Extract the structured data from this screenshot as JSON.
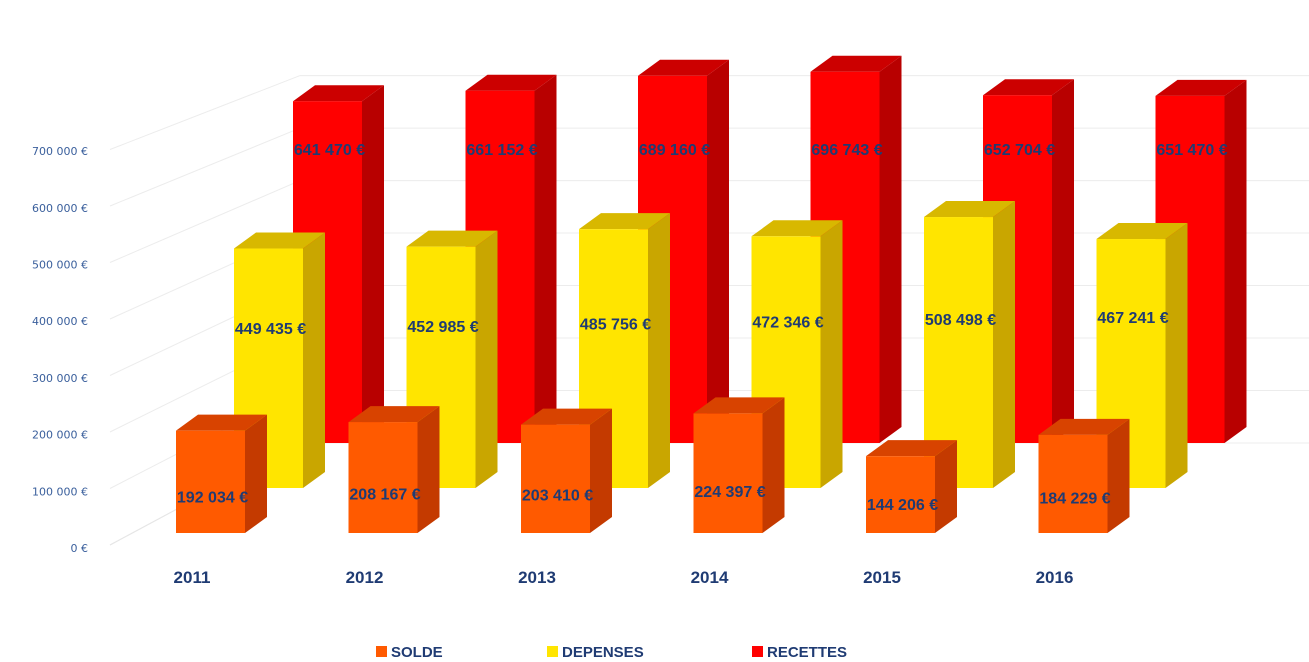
{
  "chart_data": {
    "type": "bar",
    "categories": [
      "2011",
      "2012",
      "2013",
      "2014",
      "2015",
      "2016"
    ],
    "series": [
      {
        "name": "SOLDE",
        "values": [
          192034,
          208167,
          203410,
          224397,
          144206,
          184229
        ],
        "labels": [
          "192 034 €",
          "208 167 €",
          "203 410 €",
          "224 397 €",
          "144 206 €",
          "184 229 €"
        ],
        "color": "#ff5a00",
        "side_color": "#c43a00",
        "top_color": "#d84300"
      },
      {
        "name": "DEPENSES",
        "values": [
          449435,
          452985,
          485756,
          472346,
          508498,
          467241
        ],
        "labels": [
          "449 435 €",
          "452 985 €",
          "485 756 €",
          "472 346 €",
          "508 498 €",
          "467 241 €"
        ],
        "color": "#ffe500",
        "side_color": "#c9a600",
        "top_color": "#d8b800"
      },
      {
        "name": "RECETTES",
        "values": [
          641470,
          661152,
          689160,
          696743,
          652704,
          651470
        ],
        "labels": [
          "641 470 €",
          "661 152 €",
          "689 160 €",
          "696 743 €",
          "652 704 €",
          "651 470 €"
        ],
        "color": "#ff0000",
        "side_color": "#b80000",
        "top_color": "#cc0000"
      }
    ],
    "yticks": [
      "0 €",
      "100 000 €",
      "200 000 €",
      "300 000 €",
      "400 000 €",
      "500 000 €",
      "600 000 €",
      "700 000 €"
    ],
    "ylim": [
      0,
      700000
    ],
    "title": "",
    "xlabel": "",
    "ylabel": "",
    "legend_position": "bottom",
    "grid": true,
    "style": "3d-clustered-column"
  }
}
